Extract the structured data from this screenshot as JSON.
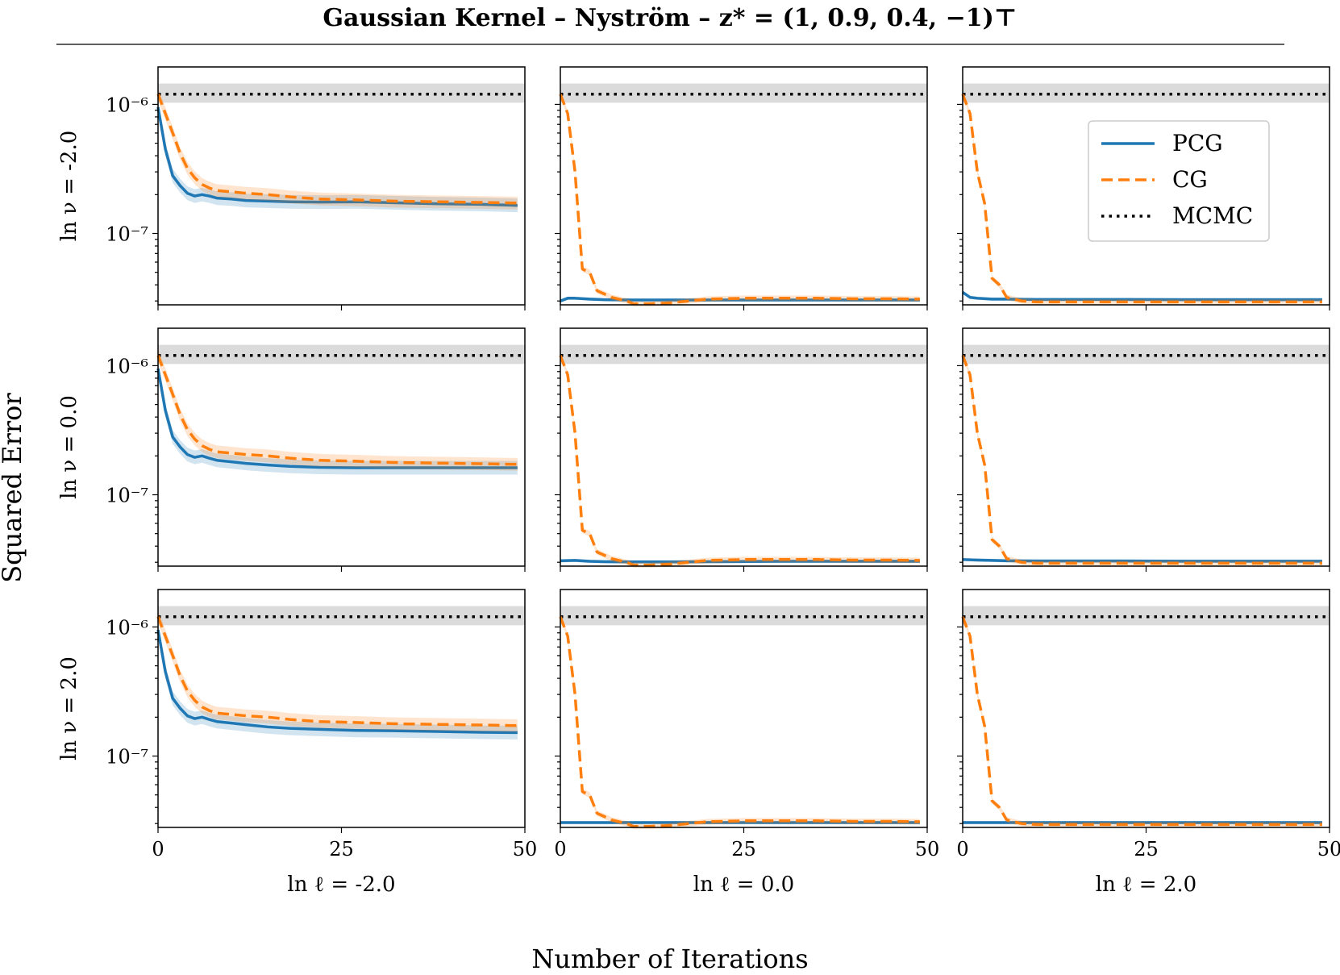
{
  "title": "Gaussian Kernel – Nyström – z* = (1, 0.9, 0.4, −1)⊤",
  "chart_data": {
    "type": "line",
    "title": "Gaussian Kernel – Nyström – z* = (1, 0.9, 0.4, −1)⊤",
    "xlabel": "Number of Iterations",
    "ylabel": "Squared Error",
    "yscale": "log",
    "xlim": [
      0,
      50
    ],
    "ylim": [
      2.8e-08,
      1.95e-06
    ],
    "x_ticks": [
      "0",
      "25",
      "50"
    ],
    "y_ticks": [
      "10⁻⁶",
      "10⁻⁷"
    ],
    "legend": {
      "position": "upper-right",
      "entries": [
        "PCG",
        "CG",
        "MCMC"
      ]
    },
    "colors": {
      "PCG": "#1f77b4",
      "CG": "#ff7f0e",
      "MCMC": "#000000",
      "band": "#bdbdbd"
    },
    "mcmc": {
      "value": 1.2e-06,
      "band_low": 1.03e-06,
      "band_high": 1.45e-06
    },
    "columns": [
      "ln ℓ = -2.0",
      "ln ℓ = 0.0",
      "ln ℓ = 2.0"
    ],
    "rows": [
      "ln ν = -2.0",
      "ln ν = 0.0",
      "ln ν = 2.0"
    ],
    "panels": [
      {
        "row": 0,
        "col": 0,
        "series": [
          {
            "name": "PCG",
            "x": [
              0,
              1,
              2,
              3,
              4,
              5,
              6,
              7,
              8,
              10,
              12,
              15,
              18,
              22,
              27,
              32,
              38,
              44,
              49
            ],
            "y": [
              9.5e-07,
              4.5e-07,
              2.8e-07,
              2.35e-07,
              2.05e-07,
              1.95e-07,
              2e-07,
              1.95e-07,
              1.88e-07,
              1.85e-07,
              1.8e-07,
              1.78e-07,
              1.76e-07,
              1.75e-07,
              1.76e-07,
              1.73e-07,
              1.7e-07,
              1.68e-07,
              1.65e-07
            ],
            "band": 0.13
          },
          {
            "name": "CG",
            "x": [
              0,
              1,
              2,
              3,
              4,
              5,
              6,
              7,
              8,
              10,
              12,
              15,
              18,
              22,
              27,
              32,
              38,
              44,
              49
            ],
            "y": [
              1.2e-06,
              8.5e-07,
              6e-07,
              4.2e-07,
              3.2e-07,
              2.7e-07,
              2.4e-07,
              2.25e-07,
              2.15e-07,
              2.1e-07,
              2.05e-07,
              2e-07,
              1.92e-07,
              1.85e-07,
              1.82e-07,
              1.78e-07,
              1.76e-07,
              1.74e-07,
              1.72e-07
            ],
            "band": 0.12
          }
        ]
      },
      {
        "row": 0,
        "col": 1,
        "series": [
          {
            "name": "PCG",
            "x": [
              0,
              1,
              2,
              4,
              6,
              10,
              15,
              20,
              30,
              40,
              49
            ],
            "y": [
              3e-08,
              3.15e-08,
              3.15e-08,
              3.1e-08,
              3.07e-08,
              3.05e-08,
              3.05e-08,
              3.05e-08,
              3.05e-08,
              3.05e-08,
              3.05e-08
            ],
            "band": 0.03
          },
          {
            "name": "CG",
            "x": [
              0,
              1,
              2,
              3,
              4,
              5,
              6,
              7,
              8,
              9,
              10,
              12,
              15,
              20,
              25,
              30,
              35,
              40,
              45,
              49
            ],
            "y": [
              1.2e-06,
              8.5e-07,
              3e-07,
              5.3e-08,
              5e-08,
              3.6e-08,
              3.4e-08,
              3.2e-08,
              3.1e-08,
              3e-08,
              2.85e-08,
              2.85e-08,
              2.9e-08,
              3.1e-08,
              3.15e-08,
              3.15e-08,
              3.15e-08,
              3.12e-08,
              3.12e-08,
              3.1e-08
            ],
            "band": 0.05
          }
        ]
      },
      {
        "row": 0,
        "col": 2,
        "series": [
          {
            "name": "PCG",
            "x": [
              0,
              1,
              2,
              4,
              6,
              10,
              20,
              30,
              40,
              49
            ],
            "y": [
              3.5e-08,
              3.2e-08,
              3.15e-08,
              3.1e-08,
              3.1e-08,
              3.08e-08,
              3.08e-08,
              3.07e-08,
              3.07e-08,
              3.07e-08
            ],
            "band": 0.03
          },
          {
            "name": "CG",
            "x": [
              0,
              1,
              2,
              3,
              4,
              5,
              6,
              8,
              10,
              15,
              20,
              25,
              30,
              35,
              40,
              45,
              49
            ],
            "y": [
              1.2e-06,
              8.5e-07,
              3e-07,
              1.7e-07,
              4.5e-08,
              4e-08,
              3.2e-08,
              3e-08,
              2.95e-08,
              2.95e-08,
              2.95e-08,
              2.95e-08,
              2.95e-08,
              2.95e-08,
              2.95e-08,
              2.95e-08,
              2.95e-08
            ],
            "band": 0.05
          }
        ]
      },
      {
        "row": 1,
        "col": 0,
        "series": [
          {
            "name": "PCG",
            "x": [
              0,
              1,
              2,
              3,
              4,
              5,
              6,
              7,
              8,
              10,
              12,
              15,
              18,
              22,
              27,
              32,
              38,
              44,
              49
            ],
            "y": [
              9.5e-07,
              4.5e-07,
              2.8e-07,
              2.35e-07,
              2.05e-07,
              1.95e-07,
              2e-07,
              1.92e-07,
              1.85e-07,
              1.8e-07,
              1.75e-07,
              1.7e-07,
              1.66e-07,
              1.63e-07,
              1.62e-07,
              1.62e-07,
              1.62e-07,
              1.62e-07,
              1.62e-07
            ],
            "band": 0.13
          },
          {
            "name": "CG",
            "x": [
              0,
              1,
              2,
              3,
              4,
              5,
              6,
              7,
              8,
              10,
              12,
              15,
              18,
              22,
              27,
              32,
              38,
              44,
              49
            ],
            "y": [
              1.2e-06,
              8.5e-07,
              6e-07,
              4.2e-07,
              3.2e-07,
              2.7e-07,
              2.4e-07,
              2.25e-07,
              2.15e-07,
              2.1e-07,
              2.05e-07,
              2e-07,
              1.92e-07,
              1.85e-07,
              1.82e-07,
              1.78e-07,
              1.76e-07,
              1.74e-07,
              1.72e-07
            ],
            "band": 0.12
          }
        ]
      },
      {
        "row": 1,
        "col": 1,
        "series": [
          {
            "name": "PCG",
            "x": [
              0,
              2,
              4,
              6,
              10,
              15,
              20,
              30,
              40,
              49
            ],
            "y": [
              3.08e-08,
              3.1e-08,
              3.05e-08,
              3.03e-08,
              3.02e-08,
              3.02e-08,
              3.03e-08,
              3.05e-08,
              3.05e-08,
              3.05e-08
            ],
            "band": 0.03
          },
          {
            "name": "CG",
            "x": [
              0,
              1,
              2,
              3,
              4,
              5,
              6,
              7,
              8,
              9,
              10,
              12,
              15,
              20,
              25,
              30,
              35,
              40,
              45,
              49
            ],
            "y": [
              1.2e-06,
              8.5e-07,
              3e-07,
              5.3e-08,
              5e-08,
              3.6e-08,
              3.4e-08,
              3.2e-08,
              3.1e-08,
              3e-08,
              2.85e-08,
              2.85e-08,
              2.9e-08,
              3.1e-08,
              3.15e-08,
              3.15e-08,
              3.15e-08,
              3.12e-08,
              3.12e-08,
              3.1e-08
            ],
            "band": 0.05
          }
        ]
      },
      {
        "row": 1,
        "col": 2,
        "series": [
          {
            "name": "PCG",
            "x": [
              0,
              2,
              4,
              6,
              10,
              20,
              30,
              40,
              49
            ],
            "y": [
              3.15e-08,
              3.12e-08,
              3.1e-08,
              3.08e-08,
              3.07e-08,
              3.07e-08,
              3.06e-08,
              3.06e-08,
              3.06e-08
            ],
            "band": 0.03
          },
          {
            "name": "CG",
            "x": [
              0,
              1,
              2,
              3,
              4,
              5,
              6,
              8,
              10,
              15,
              20,
              25,
              30,
              35,
              40,
              45,
              49
            ],
            "y": [
              1.2e-06,
              8.5e-07,
              3e-07,
              1.7e-07,
              4.5e-08,
              4e-08,
              3.2e-08,
              3e-08,
              2.95e-08,
              2.95e-08,
              2.95e-08,
              2.95e-08,
              2.95e-08,
              2.95e-08,
              2.95e-08,
              2.95e-08,
              2.95e-08
            ],
            "band": 0.05
          }
        ]
      },
      {
        "row": 2,
        "col": 0,
        "series": [
          {
            "name": "PCG",
            "x": [
              0,
              1,
              2,
              3,
              4,
              5,
              6,
              7,
              8,
              10,
              12,
              15,
              18,
              22,
              27,
              32,
              38,
              44,
              49
            ],
            "y": [
              9.5e-07,
              4.5e-07,
              2.8e-07,
              2.35e-07,
              2.05e-07,
              1.95e-07,
              2e-07,
              1.92e-07,
              1.85e-07,
              1.8e-07,
              1.75e-07,
              1.68e-07,
              1.64e-07,
              1.61e-07,
              1.58e-07,
              1.57e-07,
              1.55e-07,
              1.53e-07,
              1.52e-07
            ],
            "band": 0.13
          },
          {
            "name": "CG",
            "x": [
              0,
              1,
              2,
              3,
              4,
              5,
              6,
              7,
              8,
              10,
              12,
              15,
              18,
              22,
              27,
              32,
              38,
              44,
              49
            ],
            "y": [
              1.2e-06,
              8.5e-07,
              6e-07,
              4.2e-07,
              3.2e-07,
              2.7e-07,
              2.4e-07,
              2.25e-07,
              2.15e-07,
              2.1e-07,
              2.05e-07,
              2e-07,
              1.92e-07,
              1.85e-07,
              1.82e-07,
              1.78e-07,
              1.76e-07,
              1.74e-07,
              1.72e-07
            ],
            "band": 0.12
          }
        ]
      },
      {
        "row": 2,
        "col": 1,
        "series": [
          {
            "name": "PCG",
            "x": [
              0,
              5,
              10,
              20,
              30,
              40,
              49
            ],
            "y": [
              3.05e-08,
              3.05e-08,
              3.05e-08,
              3.05e-08,
              3.05e-08,
              3.05e-08,
              3.05e-08
            ],
            "band": 0.03
          },
          {
            "name": "CG",
            "x": [
              0,
              1,
              2,
              3,
              4,
              5,
              6,
              7,
              8,
              9,
              10,
              12,
              15,
              20,
              25,
              30,
              35,
              40,
              45,
              49
            ],
            "y": [
              1.2e-06,
              8.5e-07,
              3e-07,
              5.3e-08,
              5e-08,
              3.6e-08,
              3.4e-08,
              3.2e-08,
              3.1e-08,
              3e-08,
              2.85e-08,
              2.85e-08,
              2.9e-08,
              3.1e-08,
              3.15e-08,
              3.15e-08,
              3.15e-08,
              3.12e-08,
              3.12e-08,
              3.1e-08
            ],
            "band": 0.05
          }
        ]
      },
      {
        "row": 2,
        "col": 2,
        "series": [
          {
            "name": "PCG",
            "x": [
              0,
              5,
              10,
              20,
              30,
              40,
              49
            ],
            "y": [
              3.05e-08,
              3.05e-08,
              3.05e-08,
              3.05e-08,
              3.05e-08,
              3.05e-08,
              3.05e-08
            ],
            "band": 0.03
          },
          {
            "name": "CG",
            "x": [
              0,
              1,
              2,
              3,
              4,
              5,
              6,
              8,
              10,
              15,
              20,
              25,
              30,
              35,
              40,
              45,
              49
            ],
            "y": [
              1.2e-06,
              8.5e-07,
              3e-07,
              1.7e-07,
              4.5e-08,
              4e-08,
              3.2e-08,
              3e-08,
              2.95e-08,
              2.95e-08,
              2.95e-08,
              2.95e-08,
              2.95e-08,
              2.95e-08,
              2.95e-08,
              2.95e-08,
              2.95e-08
            ],
            "band": 0.05
          }
        ]
      }
    ]
  }
}
